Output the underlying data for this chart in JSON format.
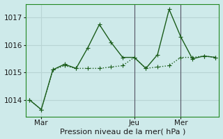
{
  "xlabel": "Pression niveau de la mer( hPa )",
  "bg_color": "#ceeaea",
  "grid_color": "#b8d4d4",
  "line_color": "#1a5c1a",
  "ylim": [
    1013.4,
    1017.5
  ],
  "yticks": [
    1014,
    1015,
    1016,
    1017
  ],
  "xlim": [
    -0.3,
    16.3
  ],
  "series1_y": [
    1014.0,
    1013.65,
    1015.1,
    1015.25,
    1015.15,
    1015.15,
    1015.15,
    1015.2,
    1015.25,
    1015.55,
    1015.15,
    1015.2,
    1015.25,
    1015.55,
    1015.55,
    1015.6,
    1015.55
  ],
  "series2_y": [
    1014.0,
    1013.65,
    1015.1,
    1015.3,
    1015.15,
    1015.9,
    1016.75,
    1016.1,
    1015.55,
    1015.55,
    1015.15,
    1015.65,
    1017.3,
    1016.3,
    1015.5,
    1015.6,
    1015.55
  ],
  "xtick_positions": [
    1,
    9,
    13
  ],
  "xtick_labels": [
    "Mar",
    "Jeu",
    "Mer"
  ],
  "vlines_x": [
    9,
    13
  ],
  "vline_color": "#555566",
  "xlabel_fontsize": 8,
  "tick_fontsize": 7.5,
  "linewidth": 1.0,
  "markersize": 2.5
}
